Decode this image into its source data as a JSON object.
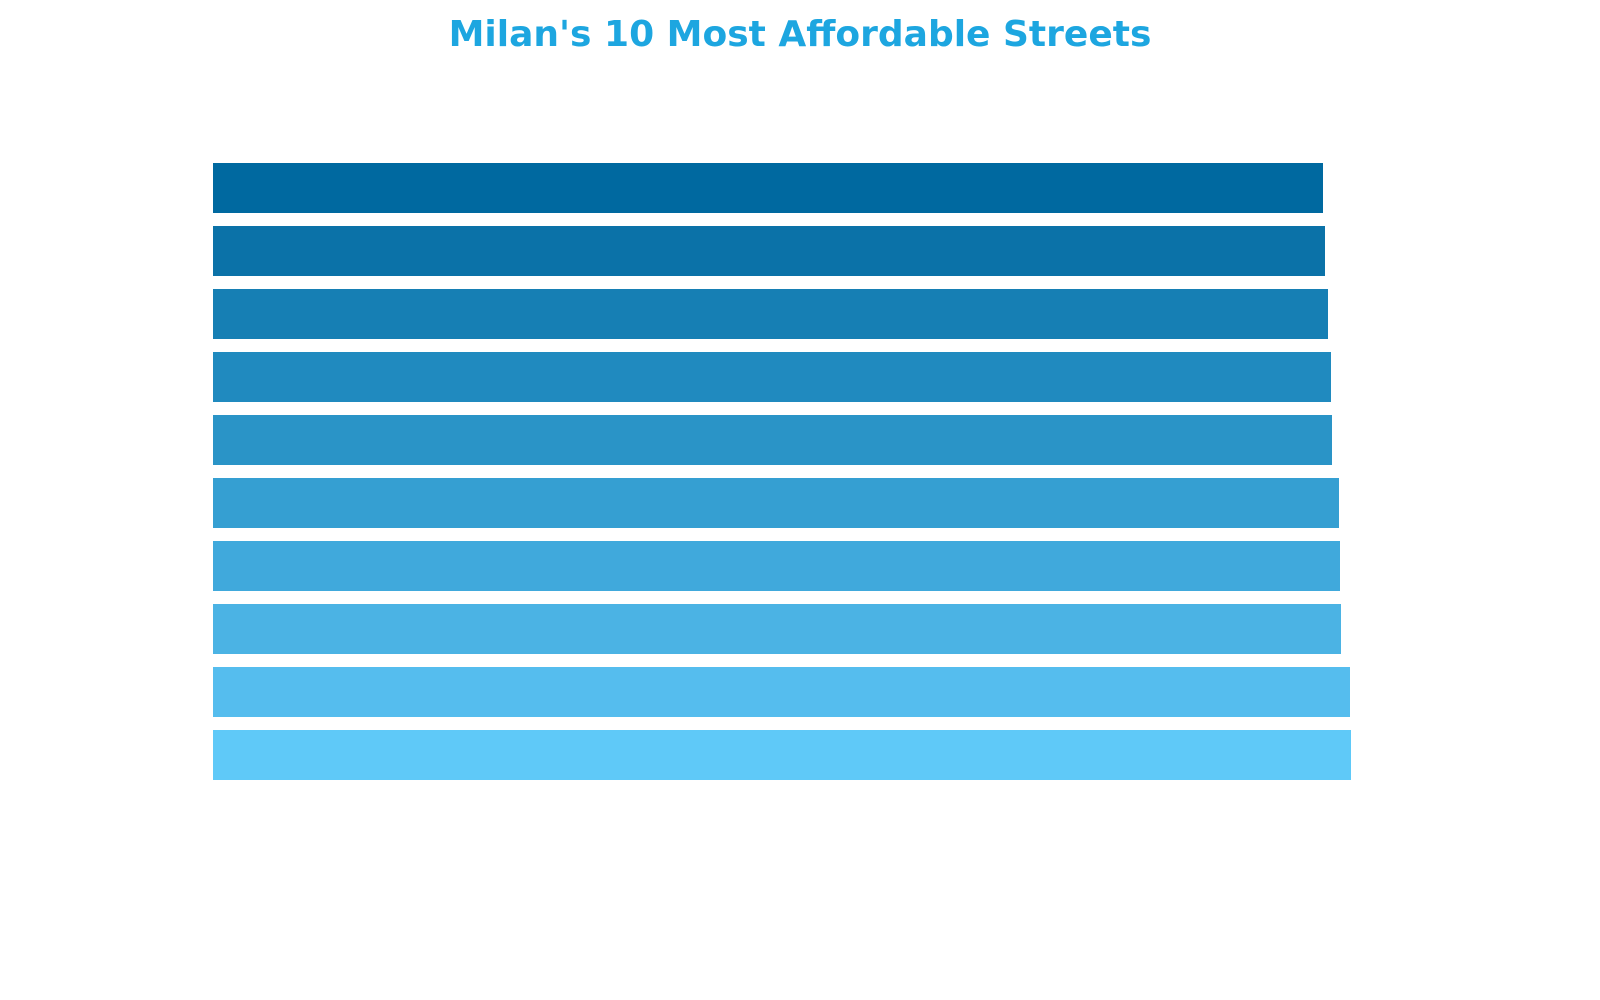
{
  "chart_data": {
    "type": "bar",
    "orientation": "horizontal",
    "title": "Milan's 10 Most Affordable Streets",
    "categories": [
      null,
      null,
      null,
      null,
      null,
      null,
      null,
      null,
      null,
      null
    ],
    "values": [
      1110,
      1112,
      1115,
      1118,
      1119,
      1126,
      1127,
      1128,
      1137,
      1138
    ],
    "colors": [
      "#0069a0",
      "#0b72a8",
      "#167fb4",
      "#208abf",
      "#2a94c7",
      "#359fd2",
      "#40a9dc",
      "#4bb3e4",
      "#55bdee",
      "#5fc9f8"
    ],
    "xlim": [
      0,
      1138
    ]
  }
}
